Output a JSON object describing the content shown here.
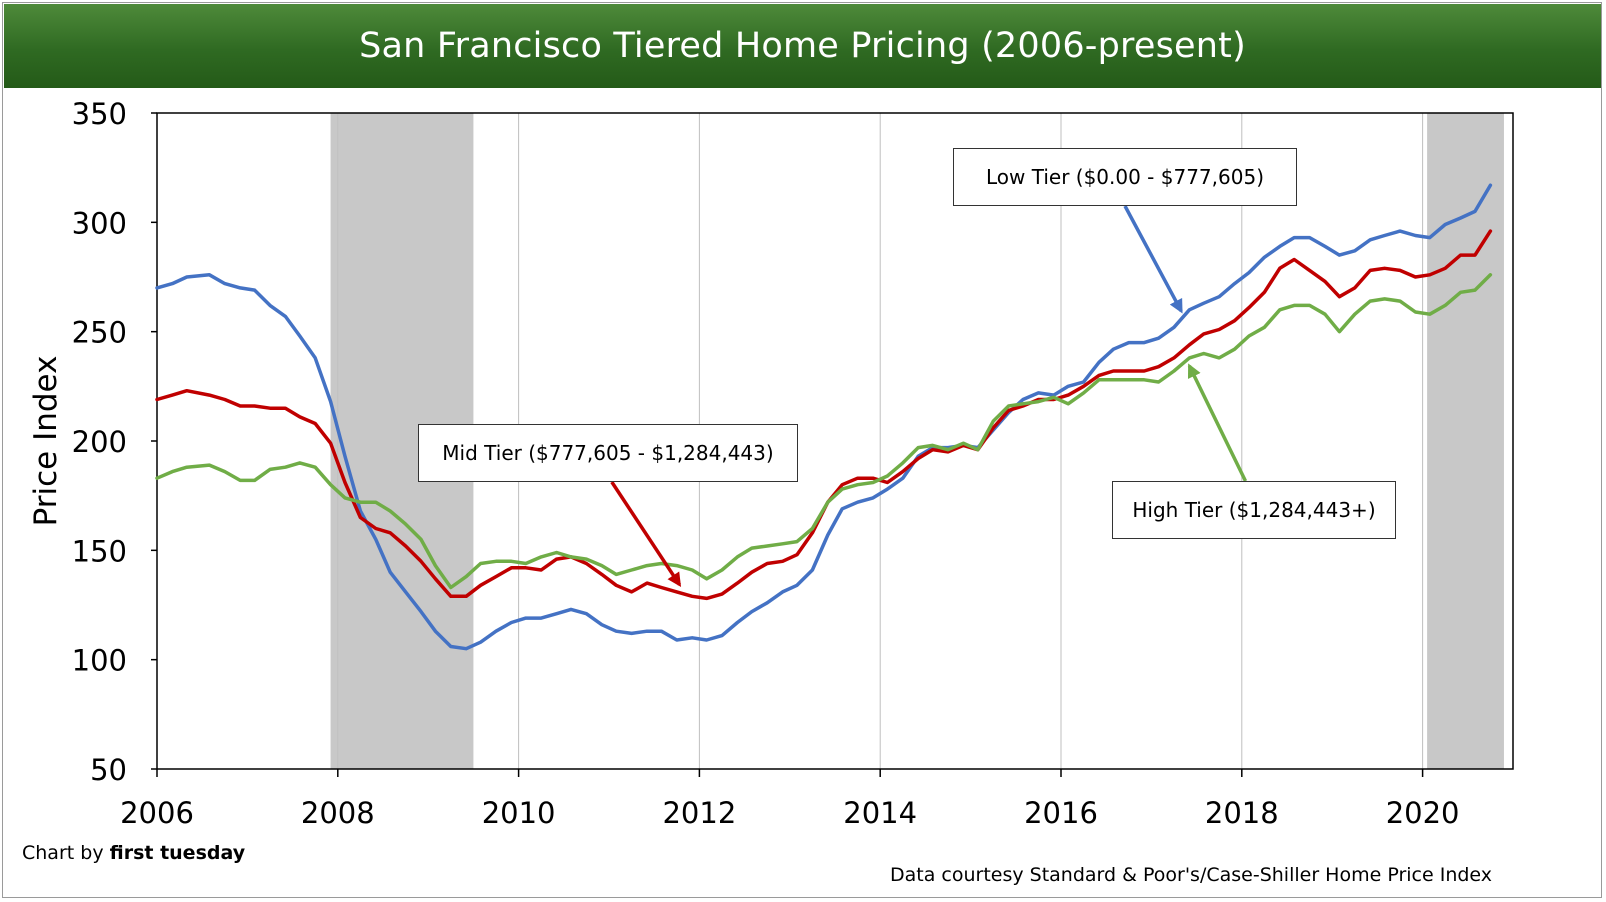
{
  "title": "San Francisco Tiered Home Pricing (2006-present)",
  "footer": {
    "credit_prefix": "Chart by ",
    "credit_brand": "first tuesday",
    "source": "Data courtesy Standard & Poor's/Case-Shiller Home Price Index"
  },
  "annotations": {
    "low": "Low Tier ($0.00 - $777,605)",
    "mid": "Mid Tier ($777,605 - $1,284,443)",
    "high": "High Tier ($1,284,443+)"
  },
  "chart_data": {
    "type": "line",
    "title": "San Francisco Tiered Home Pricing (2006-present)",
    "xlabel": "",
    "ylabel": "Price Index",
    "xlim": [
      2006,
      2021
    ],
    "ylim": [
      50,
      350
    ],
    "xticks": [
      2006,
      2008,
      2010,
      2012,
      2014,
      2016,
      2018,
      2020
    ],
    "yticks": [
      50,
      100,
      150,
      200,
      250,
      300,
      350
    ],
    "grid": "vertical",
    "recessions": [
      [
        2007.92,
        2009.5
      ],
      [
        2020.05,
        2020.9
      ]
    ],
    "series": [
      {
        "name": "Low Tier ($0.00 - $777,605)",
        "color": "#4472c4",
        "points": [
          [
            2006.0,
            270
          ],
          [
            2006.17,
            272
          ],
          [
            2006.33,
            275
          ],
          [
            2006.58,
            276
          ],
          [
            2006.75,
            272
          ],
          [
            2006.92,
            270
          ],
          [
            2007.08,
            269
          ],
          [
            2007.25,
            262
          ],
          [
            2007.42,
            257
          ],
          [
            2007.58,
            248
          ],
          [
            2007.75,
            238
          ],
          [
            2007.92,
            218
          ],
          [
            2008.08,
            193
          ],
          [
            2008.25,
            168
          ],
          [
            2008.42,
            155
          ],
          [
            2008.58,
            140
          ],
          [
            2008.75,
            131
          ],
          [
            2008.92,
            122
          ],
          [
            2009.08,
            113
          ],
          [
            2009.25,
            106
          ],
          [
            2009.42,
            105
          ],
          [
            2009.58,
            108
          ],
          [
            2009.75,
            113
          ],
          [
            2009.92,
            117
          ],
          [
            2010.08,
            119
          ],
          [
            2010.25,
            119
          ],
          [
            2010.42,
            121
          ],
          [
            2010.58,
            123
          ],
          [
            2010.75,
            121
          ],
          [
            2010.92,
            116
          ],
          [
            2011.08,
            113
          ],
          [
            2011.25,
            112
          ],
          [
            2011.42,
            113
          ],
          [
            2011.58,
            113
          ],
          [
            2011.75,
            109
          ],
          [
            2011.92,
            110
          ],
          [
            2012.08,
            109
          ],
          [
            2012.25,
            111
          ],
          [
            2012.42,
            117
          ],
          [
            2012.58,
            122
          ],
          [
            2012.75,
            126
          ],
          [
            2012.92,
            131
          ],
          [
            2013.08,
            134
          ],
          [
            2013.25,
            141
          ],
          [
            2013.42,
            157
          ],
          [
            2013.58,
            169
          ],
          [
            2013.75,
            172
          ],
          [
            2013.92,
            174
          ],
          [
            2014.08,
            178
          ],
          [
            2014.25,
            183
          ],
          [
            2014.42,
            193
          ],
          [
            2014.58,
            197
          ],
          [
            2014.75,
            197
          ],
          [
            2014.92,
            198
          ],
          [
            2015.08,
            197
          ],
          [
            2015.25,
            205
          ],
          [
            2015.42,
            213
          ],
          [
            2015.58,
            219
          ],
          [
            2015.75,
            222
          ],
          [
            2015.92,
            221
          ],
          [
            2016.08,
            225
          ],
          [
            2016.25,
            227
          ],
          [
            2016.42,
            236
          ],
          [
            2016.58,
            242
          ],
          [
            2016.75,
            245
          ],
          [
            2016.92,
            245
          ],
          [
            2017.08,
            247
          ],
          [
            2017.25,
            252
          ],
          [
            2017.42,
            260
          ],
          [
            2017.58,
            263
          ],
          [
            2017.75,
            266
          ],
          [
            2017.92,
            272
          ],
          [
            2018.08,
            277
          ],
          [
            2018.25,
            284
          ],
          [
            2018.42,
            289
          ],
          [
            2018.58,
            293
          ],
          [
            2018.75,
            293
          ],
          [
            2018.92,
            289
          ],
          [
            2019.08,
            285
          ],
          [
            2019.25,
            287
          ],
          [
            2019.42,
            292
          ],
          [
            2019.58,
            294
          ],
          [
            2019.75,
            296
          ],
          [
            2019.92,
            294
          ],
          [
            2020.08,
            293
          ],
          [
            2020.25,
            299
          ],
          [
            2020.42,
            302
          ],
          [
            2020.58,
            305
          ],
          [
            2020.75,
            317
          ]
        ]
      },
      {
        "name": "Mid Tier ($777,605 - $1,284,443)",
        "color": "#c00000",
        "points": [
          [
            2006.0,
            219
          ],
          [
            2006.17,
            221
          ],
          [
            2006.33,
            223
          ],
          [
            2006.58,
            221
          ],
          [
            2006.75,
            219
          ],
          [
            2006.92,
            216
          ],
          [
            2007.08,
            216
          ],
          [
            2007.25,
            215
          ],
          [
            2007.42,
            215
          ],
          [
            2007.58,
            211
          ],
          [
            2007.75,
            208
          ],
          [
            2007.92,
            199
          ],
          [
            2008.08,
            181
          ],
          [
            2008.25,
            165
          ],
          [
            2008.42,
            160
          ],
          [
            2008.58,
            158
          ],
          [
            2008.75,
            152
          ],
          [
            2008.92,
            145
          ],
          [
            2009.08,
            137
          ],
          [
            2009.25,
            129
          ],
          [
            2009.42,
            129
          ],
          [
            2009.58,
            134
          ],
          [
            2009.75,
            138
          ],
          [
            2009.92,
            142
          ],
          [
            2010.08,
            142
          ],
          [
            2010.25,
            141
          ],
          [
            2010.42,
            146
          ],
          [
            2010.58,
            147
          ],
          [
            2010.75,
            144
          ],
          [
            2010.92,
            139
          ],
          [
            2011.08,
            134
          ],
          [
            2011.25,
            131
          ],
          [
            2011.42,
            135
          ],
          [
            2011.58,
            133
          ],
          [
            2011.75,
            131
          ],
          [
            2011.92,
            129
          ],
          [
            2012.08,
            128
          ],
          [
            2012.25,
            130
          ],
          [
            2012.42,
            135
          ],
          [
            2012.58,
            140
          ],
          [
            2012.75,
            144
          ],
          [
            2012.92,
            145
          ],
          [
            2013.08,
            148
          ],
          [
            2013.25,
            158
          ],
          [
            2013.42,
            172
          ],
          [
            2013.58,
            180
          ],
          [
            2013.75,
            183
          ],
          [
            2013.92,
            183
          ],
          [
            2014.08,
            181
          ],
          [
            2014.25,
            186
          ],
          [
            2014.42,
            192
          ],
          [
            2014.58,
            196
          ],
          [
            2014.75,
            195
          ],
          [
            2014.92,
            198
          ],
          [
            2015.08,
            196
          ],
          [
            2015.25,
            206
          ],
          [
            2015.42,
            214
          ],
          [
            2015.58,
            216
          ],
          [
            2015.75,
            219
          ],
          [
            2015.92,
            219
          ],
          [
            2016.08,
            221
          ],
          [
            2016.25,
            225
          ],
          [
            2016.42,
            230
          ],
          [
            2016.58,
            232
          ],
          [
            2016.75,
            232
          ],
          [
            2016.92,
            232
          ],
          [
            2017.08,
            234
          ],
          [
            2017.25,
            238
          ],
          [
            2017.42,
            244
          ],
          [
            2017.58,
            249
          ],
          [
            2017.75,
            251
          ],
          [
            2017.92,
            255
          ],
          [
            2018.08,
            261
          ],
          [
            2018.25,
            268
          ],
          [
            2018.42,
            279
          ],
          [
            2018.58,
            283
          ],
          [
            2018.75,
            278
          ],
          [
            2018.92,
            273
          ],
          [
            2019.08,
            266
          ],
          [
            2019.25,
            270
          ],
          [
            2019.42,
            278
          ],
          [
            2019.58,
            279
          ],
          [
            2019.75,
            278
          ],
          [
            2019.92,
            275
          ],
          [
            2020.08,
            276
          ],
          [
            2020.25,
            279
          ],
          [
            2020.42,
            285
          ],
          [
            2020.58,
            285
          ],
          [
            2020.75,
            296
          ]
        ]
      },
      {
        "name": "High Tier ($1,284,443+)",
        "color": "#70ad47",
        "points": [
          [
            2006.0,
            183
          ],
          [
            2006.17,
            186
          ],
          [
            2006.33,
            188
          ],
          [
            2006.58,
            189
          ],
          [
            2006.75,
            186
          ],
          [
            2006.92,
            182
          ],
          [
            2007.08,
            182
          ],
          [
            2007.25,
            187
          ],
          [
            2007.42,
            188
          ],
          [
            2007.58,
            190
          ],
          [
            2007.75,
            188
          ],
          [
            2007.92,
            180
          ],
          [
            2008.08,
            174
          ],
          [
            2008.25,
            172
          ],
          [
            2008.42,
            172
          ],
          [
            2008.58,
            168
          ],
          [
            2008.75,
            162
          ],
          [
            2008.92,
            155
          ],
          [
            2009.08,
            143
          ],
          [
            2009.25,
            133
          ],
          [
            2009.42,
            138
          ],
          [
            2009.58,
            144
          ],
          [
            2009.75,
            145
          ],
          [
            2009.92,
            145
          ],
          [
            2010.08,
            144
          ],
          [
            2010.25,
            147
          ],
          [
            2010.42,
            149
          ],
          [
            2010.58,
            147
          ],
          [
            2010.75,
            146
          ],
          [
            2010.92,
            143
          ],
          [
            2011.08,
            139
          ],
          [
            2011.25,
            141
          ],
          [
            2011.42,
            143
          ],
          [
            2011.58,
            144
          ],
          [
            2011.75,
            143
          ],
          [
            2011.92,
            141
          ],
          [
            2012.08,
            137
          ],
          [
            2012.25,
            141
          ],
          [
            2012.42,
            147
          ],
          [
            2012.58,
            151
          ],
          [
            2012.75,
            152
          ],
          [
            2012.92,
            153
          ],
          [
            2013.08,
            154
          ],
          [
            2013.25,
            160
          ],
          [
            2013.42,
            172
          ],
          [
            2013.58,
            178
          ],
          [
            2013.75,
            180
          ],
          [
            2013.92,
            181
          ],
          [
            2014.08,
            184
          ],
          [
            2014.25,
            190
          ],
          [
            2014.42,
            197
          ],
          [
            2014.58,
            198
          ],
          [
            2014.75,
            196
          ],
          [
            2014.92,
            199
          ],
          [
            2015.08,
            196
          ],
          [
            2015.25,
            209
          ],
          [
            2015.42,
            216
          ],
          [
            2015.58,
            217
          ],
          [
            2015.75,
            218
          ],
          [
            2015.92,
            220
          ],
          [
            2016.08,
            217
          ],
          [
            2016.25,
            222
          ],
          [
            2016.42,
            228
          ],
          [
            2016.58,
            228
          ],
          [
            2016.75,
            228
          ],
          [
            2016.92,
            228
          ],
          [
            2017.08,
            227
          ],
          [
            2017.25,
            232
          ],
          [
            2017.42,
            238
          ],
          [
            2017.58,
            240
          ],
          [
            2017.75,
            238
          ],
          [
            2017.92,
            242
          ],
          [
            2018.08,
            248
          ],
          [
            2018.25,
            252
          ],
          [
            2018.42,
            260
          ],
          [
            2018.58,
            262
          ],
          [
            2018.75,
            262
          ],
          [
            2018.92,
            258
          ],
          [
            2019.08,
            250
          ],
          [
            2019.25,
            258
          ],
          [
            2019.42,
            264
          ],
          [
            2019.58,
            265
          ],
          [
            2019.75,
            264
          ],
          [
            2019.92,
            259
          ],
          [
            2020.08,
            258
          ],
          [
            2020.25,
            262
          ],
          [
            2020.42,
            268
          ],
          [
            2020.58,
            269
          ],
          [
            2020.75,
            276
          ]
        ]
      }
    ]
  }
}
